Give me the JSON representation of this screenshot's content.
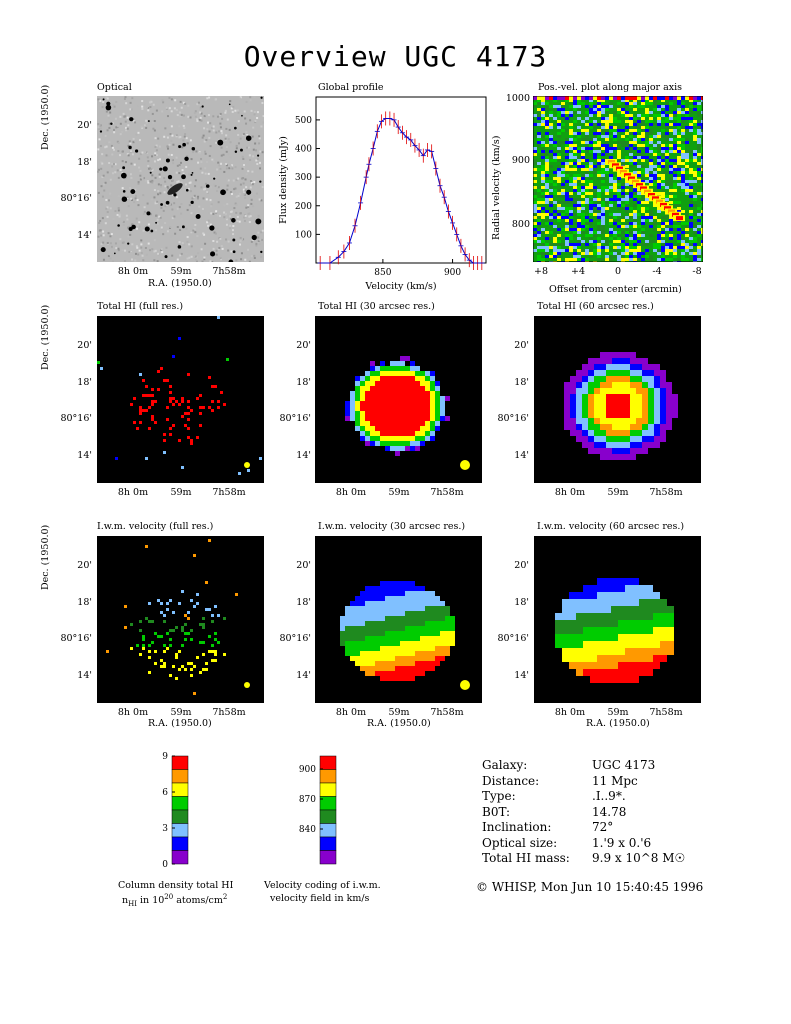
{
  "title": "Overview UGC 4173",
  "panels": {
    "optical": "Optical",
    "global_profile": "Global profile",
    "pv": "Pos.-vel. plot along major axis",
    "hi_full": "Total HI (full res.)",
    "hi_30": "Total HI (30 arcsec res.)",
    "hi_60": "Total HI (60 arcsec res.)",
    "vel_full": "I.w.m. velocity (full res.)",
    "vel_30": "I.w.m. velocity (30 arcsec res.)",
    "vel_60": "I.w.m. velocity (60 arcsec res.)"
  },
  "axes": {
    "dec_label": "Dec. (1950.0)",
    "ra_label": "R.A. (1950.0)",
    "dec_ticks": [
      "20'",
      "18'",
      "80°16'",
      "14'"
    ],
    "ra_ticks": [
      "8h 0m",
      "59m",
      "7h58m"
    ],
    "flux_label": "Flux density (mJy)",
    "velocity_label": "Velocity (km/s)",
    "radial_label": "Radial velocity (km/s)",
    "offset_label": "Offset from center (arcmin)",
    "offset_ticks": [
      "+8",
      "+4",
      "0",
      "-4",
      "-8"
    ],
    "pv_ticks": [
      "1000",
      "900",
      "800"
    ]
  },
  "chart_data": {
    "type": "line",
    "title": "Global profile",
    "xlabel": "Velocity (km/s)",
    "ylabel": "Flux density (mJy)",
    "xlim": [
      802,
      924
    ],
    "ylim": [
      0,
      580
    ],
    "x": [
      805,
      812,
      818,
      822,
      826,
      830,
      834,
      838,
      840,
      843,
      846,
      849,
      852,
      855,
      858,
      861,
      864,
      867,
      870,
      873,
      876,
      879,
      882,
      885,
      888,
      891,
      894,
      897,
      900,
      903,
      906,
      909,
      912,
      915,
      918,
      921
    ],
    "y": [
      0,
      0,
      20,
      40,
      70,
      130,
      210,
      300,
      345,
      400,
      460,
      495,
      505,
      505,
      500,
      475,
      455,
      440,
      430,
      410,
      395,
      375,
      395,
      390,
      330,
      270,
      230,
      180,
      140,
      100,
      60,
      30,
      10,
      0,
      0,
      0
    ]
  },
  "colorbars": {
    "density": {
      "ticks": [
        "9",
        "6",
        "3",
        "0"
      ],
      "caption1": "Column density total HI",
      "caption2": "nHI in 10^20 atoms/cm^2",
      "colors": [
        "#ff0000",
        "#ff9900",
        "#ffff00",
        "#00cc00",
        "#1f8a1f",
        "#80c0ff",
        "#0000ff",
        "#8800cc"
      ]
    },
    "velocity": {
      "ticks": [
        "900",
        "870",
        "840"
      ],
      "caption1": "Velocity coding of i.w.m.",
      "caption2": "velocity field in km/s",
      "colors": [
        "#ff0000",
        "#ff9900",
        "#ffff00",
        "#00cc00",
        "#1f8a1f",
        "#80c0ff",
        "#0000ff",
        "#8800cc"
      ]
    }
  },
  "galaxy_info": [
    {
      "key": "Galaxy:",
      "value": "UGC 4173"
    },
    {
      "key": "Distance:",
      "value": "11 Mpc"
    },
    {
      "key": "Type:",
      "value": ".I..9*."
    },
    {
      "key": "B0T:",
      "value": "14.78"
    },
    {
      "key": "Inclination:",
      "value": "72°"
    },
    {
      "key": "Optical size:",
      "value": "1.'9 x 0.'6"
    },
    {
      "key": "Total HI mass:",
      "value": "9.9 x 10^8 M☉"
    }
  ],
  "credit": "© WHISP, Mon Jun 10 15:40:45 1996"
}
